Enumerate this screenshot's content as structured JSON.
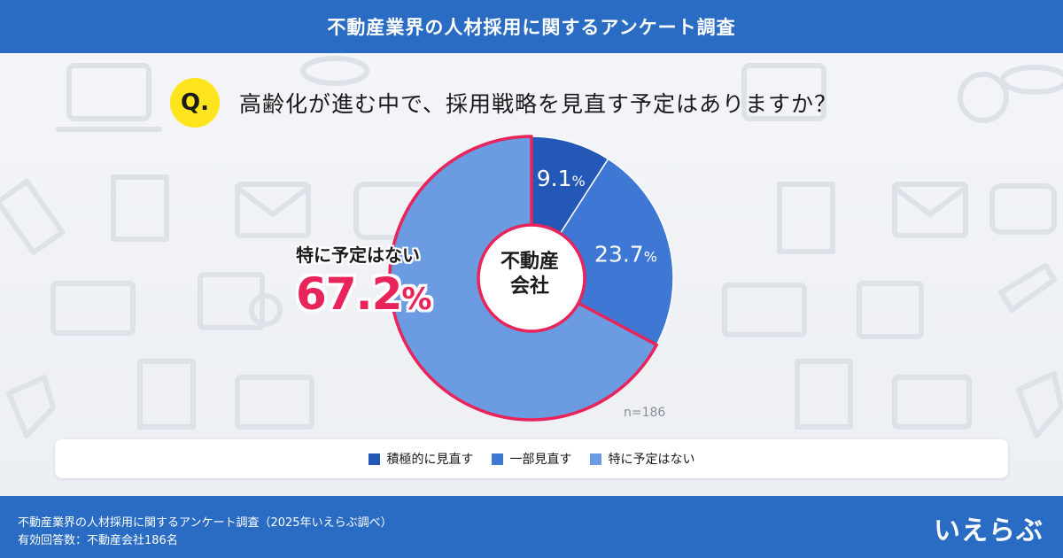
{
  "header": {
    "title": "不動産業界の人材採用に関するアンケート調査"
  },
  "question": {
    "badge": "Q.",
    "text": "高齢化が進む中で、採用戦略を見直す予定はありますか？"
  },
  "chart_data": {
    "type": "pie",
    "categories": [
      "積極的に見直す",
      "一部見直す",
      "特に予定はない"
    ],
    "values": [
      9.1,
      23.7,
      67.2
    ],
    "value_labels": [
      "9.1",
      "23.7",
      "67.2"
    ],
    "unit": "%",
    "colors": [
      "#2458b6",
      "#3e78d4",
      "#6b9be0"
    ],
    "highlight_color": "#e8245a",
    "center_label": [
      "不動産",
      "会社"
    ],
    "callout": {
      "label": "特に予定はない",
      "value": "67.2",
      "unit": "%"
    },
    "sample_size": "n=186",
    "legend_position": "bottom"
  },
  "footer": {
    "line1": "不動産業界の人材採用に関するアンケート調査（2025年いえらぶ調べ）",
    "line2": "有効回答数：不動産会社186名",
    "logo": "いえらぶ"
  }
}
